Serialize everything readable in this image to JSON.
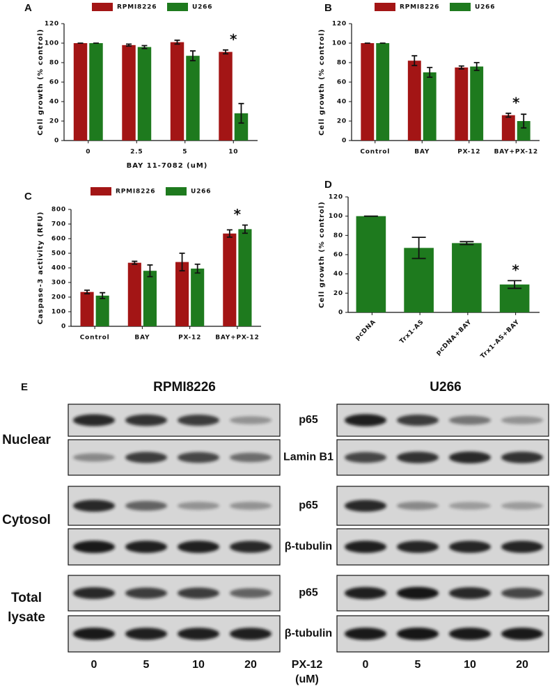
{
  "chart_data": [
    {
      "type": "bar",
      "panel": "A",
      "ylabel": "Cell growth (% control)",
      "xlabel": "BAY 11-7082 (uM)",
      "categories": [
        "0",
        "2.5",
        "5",
        "10"
      ],
      "series": [
        {
          "name": "RPMI8226",
          "color": "#a31515",
          "values": [
            100,
            98,
            101,
            91
          ],
          "errors": [
            0,
            1,
            2,
            2
          ]
        },
        {
          "name": "U266",
          "color": "#1e7a1e",
          "values": [
            100,
            96,
            87,
            28
          ],
          "errors": [
            0,
            1.5,
            5,
            10
          ]
        }
      ],
      "ylim": [
        0,
        120
      ],
      "yticks": [
        0,
        20,
        40,
        60,
        80,
        100,
        120
      ],
      "annotations": [
        {
          "text": "*",
          "category": "10"
        }
      ]
    },
    {
      "type": "bar",
      "panel": "B",
      "ylabel": "Cell growth (% control)",
      "categories": [
        "Control",
        "BAY",
        "PX-12",
        "BAY+PX-12"
      ],
      "series": [
        {
          "name": "RPMI8226",
          "color": "#a31515",
          "values": [
            100,
            82,
            75,
            26
          ],
          "errors": [
            0,
            5,
            1.5,
            2
          ]
        },
        {
          "name": "U266",
          "color": "#1e7a1e",
          "values": [
            100,
            70,
            76,
            20
          ],
          "errors": [
            0,
            5,
            4,
            7
          ]
        }
      ],
      "ylim": [
        0,
        120
      ],
      "yticks": [
        0,
        20,
        40,
        60,
        80,
        100,
        120
      ],
      "annotations": [
        {
          "text": "*",
          "category": "BAY+PX-12"
        }
      ]
    },
    {
      "type": "bar",
      "panel": "C",
      "ylabel": "Caspase-3 activity (RFU)",
      "categories": [
        "Control",
        "BAY",
        "PX-12",
        "BAY+PX-12"
      ],
      "series": [
        {
          "name": "RPMI8226",
          "color": "#a31515",
          "values": [
            235,
            435,
            440,
            635
          ],
          "errors": [
            12,
            10,
            60,
            25
          ]
        },
        {
          "name": "U266",
          "color": "#1e7a1e",
          "values": [
            210,
            380,
            395,
            665
          ],
          "errors": [
            20,
            40,
            30,
            28
          ]
        }
      ],
      "ylim": [
        0,
        800
      ],
      "yticks": [
        0,
        100,
        200,
        300,
        400,
        500,
        600,
        700,
        800
      ],
      "annotations": [
        {
          "text": "*",
          "category": "BAY+PX-12"
        }
      ]
    },
    {
      "type": "bar",
      "panel": "D",
      "ylabel": "Cell growth (% control)",
      "categories": [
        "pcDNA",
        "Trx1-AS",
        "pcDNA+BAY",
        "Trx1-AS+BAY"
      ],
      "series": [
        {
          "color": "#1e7a1e",
          "values": [
            100,
            67,
            72,
            29
          ],
          "errors": [
            0,
            11,
            1.5,
            4
          ]
        }
      ],
      "ylim": [
        0,
        120
      ],
      "yticks": [
        0,
        20,
        40,
        60,
        80,
        100,
        120
      ],
      "annotations": [
        {
          "text": "*",
          "category": "Trx1-AS+BAY"
        }
      ]
    }
  ],
  "blot": {
    "panel": "E",
    "cell_lines": [
      "RPMI8226",
      "U266"
    ],
    "fractions": [
      "Nuclear",
      "Cytosol",
      "Total lysate"
    ],
    "proteins": [
      "p65",
      "Lamin B1",
      "p65",
      "β-tubulin",
      "p65",
      "β-tubulin"
    ],
    "lanes": [
      "0",
      "5",
      "10",
      "20"
    ],
    "treatment": [
      "PX-12",
      "(uM)"
    ]
  }
}
